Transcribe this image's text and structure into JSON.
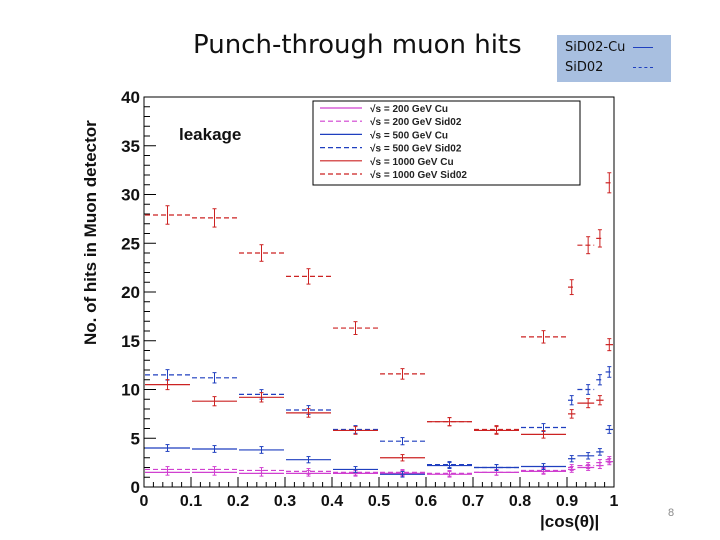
{
  "slide": {
    "title": "Punch-through muon hits",
    "key": [
      {
        "label": "SiD02-Cu",
        "color": "#1f3fbf",
        "style": "solid"
      },
      {
        "label": "SiD02",
        "color": "#1f3fbf",
        "style": "dashed"
      }
    ],
    "page_number": "8"
  },
  "chart_data": {
    "type": "scatter",
    "title": "",
    "annotation": "leakage",
    "xlabel": "|cos(θ)|",
    "ylabel": "No. of hits in Muon detector",
    "xlim": [
      0,
      1
    ],
    "ylim": [
      0,
      40
    ],
    "xticks": [
      "0",
      "0.1",
      "0.2",
      "0.3",
      "0.4",
      "0.5",
      "0.6",
      "0.7",
      "0.8",
      "0.9",
      "1"
    ],
    "yticks": [
      "0",
      "5",
      "10",
      "15",
      "20",
      "25",
      "30",
      "35",
      "40"
    ],
    "legend_position": "top-right",
    "series": [
      {
        "name": "√s = 200 GeV Cu",
        "color": "#d040d0",
        "dash": "solid",
        "points": [
          [
            0.05,
            1.5
          ],
          [
            0.15,
            1.5
          ],
          [
            0.25,
            1.4
          ],
          [
            0.35,
            1.4
          ],
          [
            0.45,
            1.4
          ],
          [
            0.55,
            1.4
          ],
          [
            0.65,
            1.3
          ],
          [
            0.75,
            1.5
          ],
          [
            0.85,
            1.6
          ],
          [
            0.91,
            1.8
          ],
          [
            0.945,
            2.0
          ],
          [
            0.97,
            2.2
          ],
          [
            0.99,
            2.6
          ]
        ]
      },
      {
        "name": "√s = 200 GeV Sid02",
        "color": "#d040d0",
        "dash": "dashed",
        "points": [
          [
            0.05,
            1.8
          ],
          [
            0.15,
            1.8
          ],
          [
            0.25,
            1.7
          ],
          [
            0.35,
            1.6
          ],
          [
            0.45,
            1.5
          ],
          [
            0.55,
            1.5
          ],
          [
            0.65,
            1.4
          ],
          [
            0.75,
            1.5
          ],
          [
            0.85,
            1.7
          ],
          [
            0.91,
            2.0
          ],
          [
            0.945,
            2.2
          ],
          [
            0.97,
            2.5
          ],
          [
            0.99,
            2.8
          ]
        ]
      },
      {
        "name": "√s = 500 GeV Cu",
        "color": "#1f3fbf",
        "dash": "solid",
        "points": [
          [
            0.05,
            4.0
          ],
          [
            0.15,
            3.9
          ],
          [
            0.25,
            3.8
          ],
          [
            0.35,
            2.8
          ],
          [
            0.45,
            1.8
          ],
          [
            0.55,
            1.3
          ],
          [
            0.65,
            2.2
          ],
          [
            0.75,
            2.0
          ],
          [
            0.85,
            2.1
          ],
          [
            0.91,
            2.9
          ],
          [
            0.945,
            3.2
          ],
          [
            0.97,
            3.6
          ],
          [
            0.99,
            5.9
          ]
        ]
      },
      {
        "name": "√s = 500 GeV Sid02",
        "color": "#1f3fbf",
        "dash": "dashed",
        "points": [
          [
            0.05,
            11.5
          ],
          [
            0.15,
            11.2
          ],
          [
            0.25,
            9.5
          ],
          [
            0.35,
            7.9
          ],
          [
            0.45,
            5.9
          ],
          [
            0.55,
            4.7
          ],
          [
            0.65,
            2.3
          ],
          [
            0.75,
            2.0
          ],
          [
            0.85,
            6.1
          ],
          [
            0.91,
            8.9
          ],
          [
            0.945,
            10.0
          ],
          [
            0.97,
            11.0
          ],
          [
            0.99,
            11.8
          ]
        ]
      },
      {
        "name": "√s = 1000 GeV Cu",
        "color": "#cc2222",
        "dash": "solid",
        "points": [
          [
            0.05,
            10.5
          ],
          [
            0.15,
            8.8
          ],
          [
            0.25,
            9.2
          ],
          [
            0.35,
            7.6
          ],
          [
            0.45,
            5.8
          ],
          [
            0.55,
            3.0
          ],
          [
            0.65,
            6.7
          ],
          [
            0.75,
            5.8
          ],
          [
            0.85,
            5.4
          ],
          [
            0.91,
            7.5
          ],
          [
            0.945,
            8.6
          ],
          [
            0.97,
            8.9
          ],
          [
            0.99,
            14.6
          ]
        ]
      },
      {
        "name": "√s = 1000 GeV Sid02",
        "color": "#cc2222",
        "dash": "dashed",
        "points": [
          [
            0.05,
            27.9
          ],
          [
            0.15,
            27.6
          ],
          [
            0.25,
            24.0
          ],
          [
            0.35,
            21.6
          ],
          [
            0.45,
            16.3
          ],
          [
            0.55,
            11.6
          ],
          [
            0.65,
            6.7
          ],
          [
            0.75,
            5.9
          ],
          [
            0.85,
            15.4
          ],
          [
            0.91,
            20.5
          ],
          [
            0.945,
            24.8
          ],
          [
            0.97,
            25.5
          ],
          [
            0.99,
            31.2
          ]
        ]
      }
    ]
  }
}
